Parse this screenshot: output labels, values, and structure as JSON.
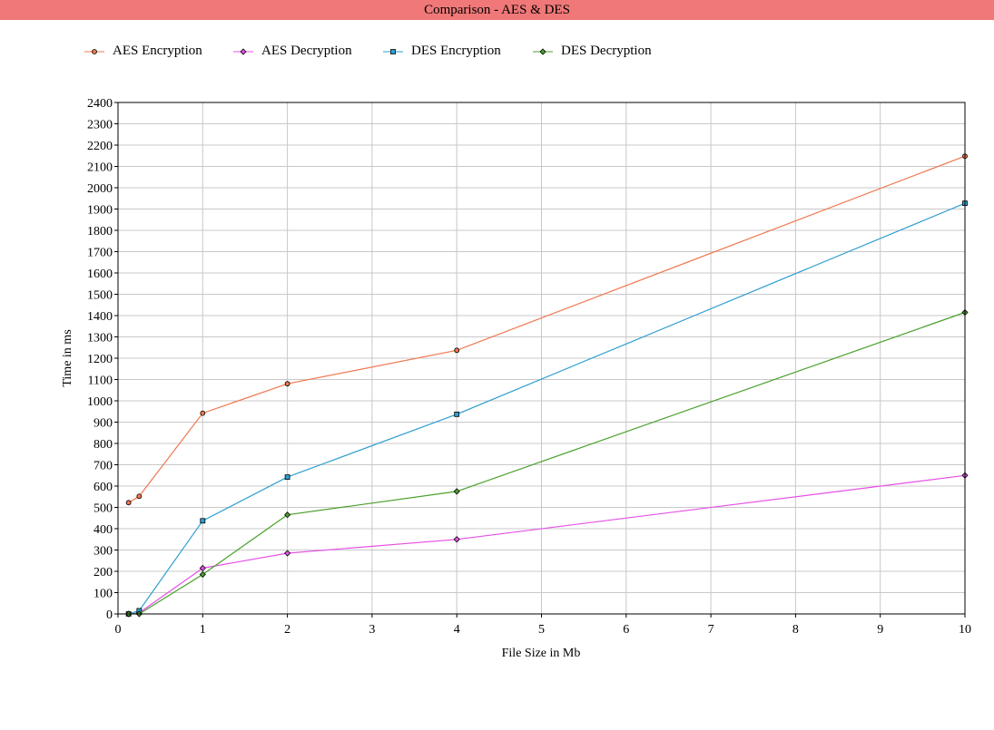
{
  "window": {
    "title": "Comparison - AES & DES"
  },
  "chart_data": {
    "type": "line",
    "title": "Comparison - AES & DES",
    "xlabel": "File Size in Mb",
    "ylabel": "Time in ms",
    "xlim": [
      0,
      10
    ],
    "ylim": [
      0,
      2400
    ],
    "xticks": [
      0,
      1,
      2,
      3,
      4,
      5,
      6,
      7,
      8,
      9,
      10
    ],
    "yticks": [
      0,
      100,
      200,
      300,
      400,
      500,
      600,
      700,
      800,
      900,
      1000,
      1100,
      1200,
      1300,
      1400,
      1500,
      1600,
      1700,
      1800,
      1900,
      2000,
      2100,
      2200,
      2300,
      2400
    ],
    "grid": true,
    "legend_position": "top",
    "series": [
      {
        "name": "AES Encryption",
        "color": "#f0784f",
        "marker": "circle",
        "points": [
          [
            0.125,
            522
          ],
          [
            0.25,
            552
          ],
          [
            1,
            942
          ],
          [
            2,
            1080
          ],
          [
            4,
            1237
          ],
          [
            10,
            2148
          ]
        ]
      },
      {
        "name": "AES Decryption",
        "color": "#e650e6",
        "marker": "diamond",
        "points": [
          [
            0.125,
            0
          ],
          [
            0.25,
            5
          ],
          [
            1,
            215
          ],
          [
            2,
            285
          ],
          [
            4,
            350
          ],
          [
            10,
            650
          ]
        ]
      },
      {
        "name": "DES Encryption",
        "color": "#2f9fd0",
        "marker": "square",
        "points": [
          [
            0.125,
            0
          ],
          [
            0.25,
            15
          ],
          [
            1,
            437
          ],
          [
            2,
            642
          ],
          [
            4,
            937
          ],
          [
            10,
            1927
          ]
        ]
      },
      {
        "name": "DES Decryption",
        "color": "#4aa02c",
        "marker": "diamond",
        "points": [
          [
            0.125,
            0
          ],
          [
            0.25,
            0
          ],
          [
            1,
            185
          ],
          [
            2,
            465
          ],
          [
            4,
            575
          ],
          [
            10,
            1415
          ]
        ]
      }
    ]
  }
}
